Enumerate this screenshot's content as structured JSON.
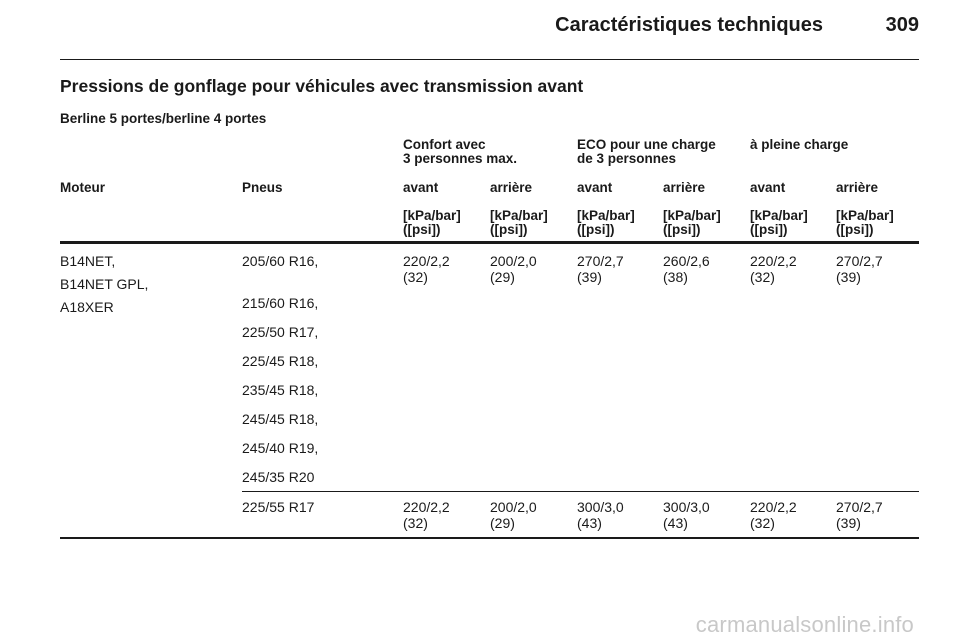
{
  "header": {
    "title": "Caractéristiques techniques",
    "page_number": "309"
  },
  "section_title": "Pressions de gonflage pour véhicules avec transmission avant",
  "sub_title": "Berline 5 portes/berline 4 portes",
  "table": {
    "group_headers": [
      [
        "Confort avec",
        "3 personnes max."
      ],
      [
        "ECO pour une charge",
        "de 3 personnes"
      ],
      [
        "à pleine charge"
      ]
    ],
    "columns": [
      "Moteur",
      "Pneus",
      "avant",
      "arrière",
      "avant",
      "arrière",
      "avant",
      "arrière"
    ],
    "units": [
      "[kPa/bar]",
      "([psi])"
    ],
    "engines": [
      "B14NET,",
      "B14NET GPL,",
      "A18XER"
    ],
    "tires_group_1": [
      "205/60 R16,",
      "215/60 R16,",
      "225/50 R17,",
      "225/45 R18,",
      "235/45 R18,",
      "245/45 R18,",
      "245/40 R19,",
      "245/35 R20"
    ],
    "values_group_1": [
      [
        "220/2,2",
        "(32)"
      ],
      [
        "200/2,0",
        "(29)"
      ],
      [
        "270/2,7",
        "(39)"
      ],
      [
        "260/2,6",
        "(38)"
      ],
      [
        "220/2,2",
        "(32)"
      ],
      [
        "270/2,7",
        "(39)"
      ]
    ],
    "tire_group_2": "225/55 R17",
    "values_group_2": [
      [
        "220/2,2",
        "(32)"
      ],
      [
        "200/2,0",
        "(29)"
      ],
      [
        "300/3,0",
        "(43)"
      ],
      [
        "300/3,0",
        "(43)"
      ],
      [
        "220/2,2",
        "(32)"
      ],
      [
        "270/2,7",
        "(39)"
      ]
    ]
  },
  "watermark": "carmanualsonline.info"
}
